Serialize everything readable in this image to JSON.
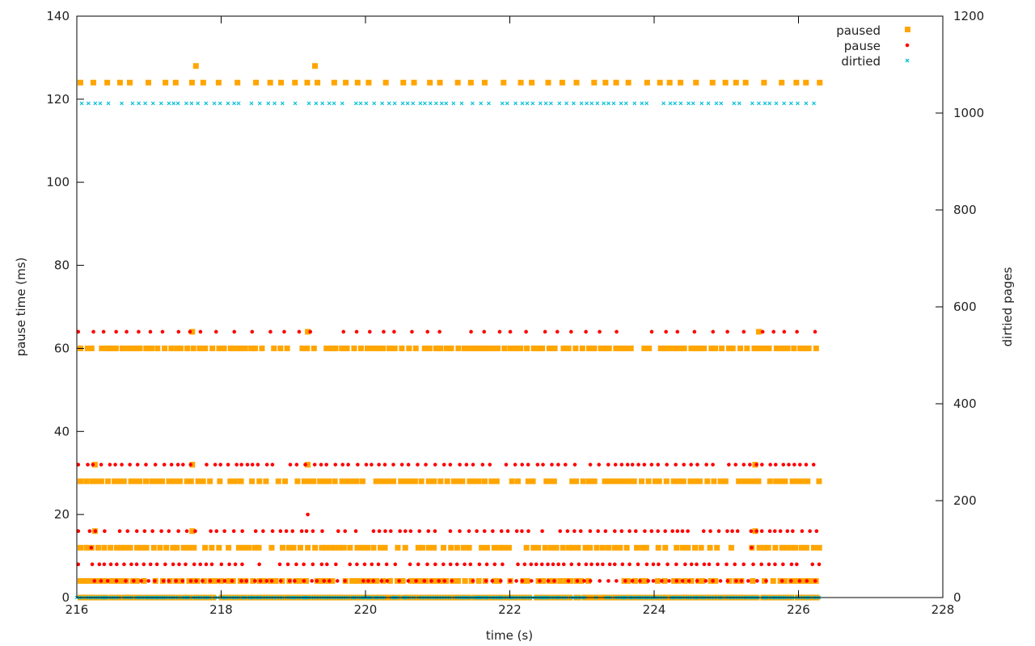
{
  "chart_data": {
    "type": "scatter",
    "xlabel": "time (s)",
    "ylabel": "pause time (ms)",
    "y2label": "dirtied pages",
    "xlim": [
      216,
      228
    ],
    "ylim": [
      0,
      140
    ],
    "y2lim": [
      0,
      1200
    ],
    "x_ticks": [
      216,
      218,
      220,
      222,
      224,
      226,
      228
    ],
    "y_ticks": [
      0,
      20,
      40,
      60,
      80,
      100,
      120,
      140
    ],
    "y2_ticks": [
      0,
      200,
      400,
      600,
      800,
      1000,
      1200
    ],
    "grid": false,
    "legend_position": "top-right",
    "x_range_of_points": [
      216.0,
      226.3
    ],
    "series": [
      {
        "name": "paused",
        "axis": "left",
        "marker": "square",
        "color": "#ffa500",
        "levels": [
          0,
          4,
          12,
          28,
          60,
          124
        ],
        "outliers": [
          [
            216.25,
            16
          ],
          [
            216.25,
            32
          ],
          [
            217.6,
            16
          ],
          [
            217.6,
            32
          ],
          [
            217.6,
            64
          ],
          [
            217.65,
            128
          ],
          [
            219.2,
            32
          ],
          [
            219.2,
            64
          ],
          [
            219.3,
            128
          ],
          [
            225.4,
            16
          ],
          [
            225.4,
            32
          ],
          [
            225.45,
            64
          ]
        ]
      },
      {
        "name": "pause",
        "axis": "left",
        "marker": "circle",
        "color": "#ff0000",
        "levels": [
          4,
          8,
          16,
          32,
          64
        ],
        "outliers": [
          [
            219.2,
            20
          ],
          [
            216.2,
            12
          ],
          [
            225.35,
            12
          ]
        ]
      },
      {
        "name": "dirtied",
        "axis": "right",
        "marker": "x",
        "color": "#00bfd8",
        "levels": [
          0,
          1020
        ]
      }
    ]
  }
}
